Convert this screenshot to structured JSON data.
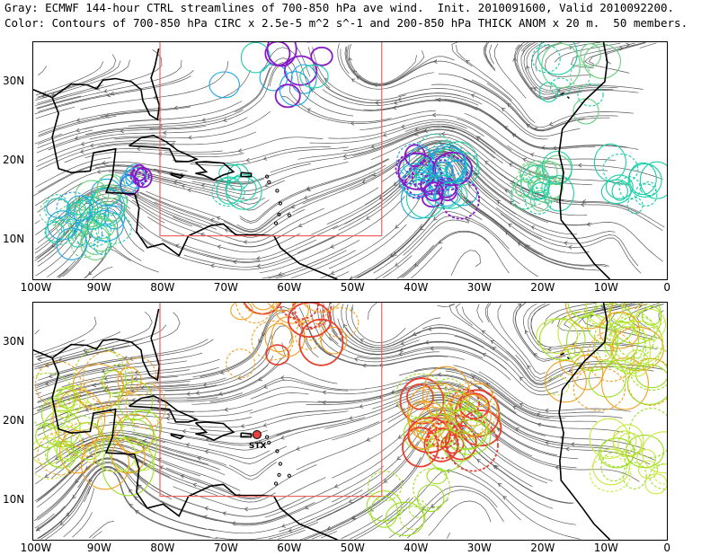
{
  "header": {
    "line1": "Gray: ECMWF 144-hour CTRL streamlines of 700-850 hPa ave wind.  Init. 2010091600, Valid 2010092200.",
    "line2": "Color: Contours of 700-850 hPa CIRC x 2.5e-5 m^2 s^-1 and 200-850 hPa THICK ANOM x 20 m.  50 members."
  },
  "axes": {
    "lon_labels": [
      "100W",
      "90W",
      "80W",
      "70W",
      "60W",
      "50W",
      "40W",
      "30W",
      "20W",
      "10W",
      "0"
    ],
    "lat_labels": [
      "30N",
      "20N",
      "10N"
    ]
  },
  "map_extent": {
    "lon_min": -100,
    "lon_max": 0,
    "lat_min": 5,
    "lat_max": 35
  },
  "box_region": {
    "lon_min": -80,
    "lon_max": -45,
    "lat_min": 10.5,
    "lat_max": 35
  },
  "marker": {
    "label": "STX",
    "lon": -64.7,
    "lat": 18.3,
    "color": "#e84040"
  },
  "colors": {
    "streamlines": "#5a5a5a",
    "coast": "#000000",
    "box": "#f06060",
    "top_contours": [
      "#17cfa8",
      "#1aa8e0",
      "#8a18c8",
      "#6ad080"
    ],
    "bottom_contours": [
      "#9be020",
      "#f0a020",
      "#e84030",
      "#c8e840"
    ]
  }
}
